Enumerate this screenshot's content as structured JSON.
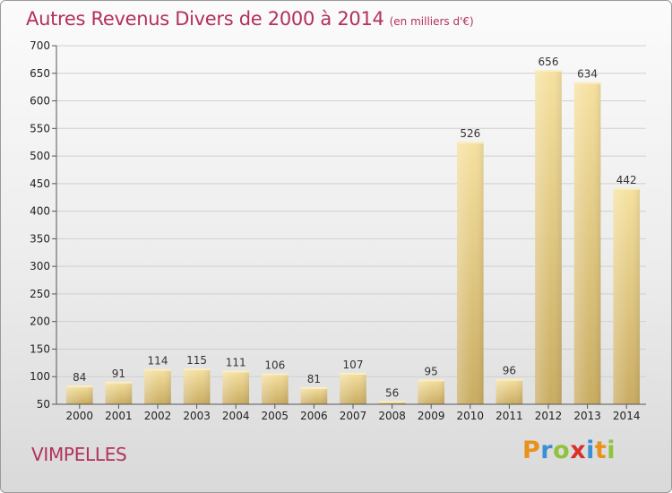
{
  "chart_data": {
    "type": "bar",
    "title": "Autres Revenus Divers de 2000 à 2014",
    "subtitle": "(en milliers d'€)",
    "categories": [
      "2000",
      "2001",
      "2002",
      "2003",
      "2004",
      "2005",
      "2006",
      "2007",
      "2008",
      "2009",
      "2010",
      "2011",
      "2012",
      "2013",
      "2014"
    ],
    "values": [
      84,
      91,
      114,
      115,
      111,
      106,
      81,
      107,
      56,
      95,
      526,
      96,
      656,
      634,
      442
    ],
    "ylim": [
      50,
      700
    ],
    "yticks": [
      50,
      100,
      150,
      200,
      250,
      300,
      350,
      400,
      450,
      500,
      550,
      600,
      650,
      700
    ],
    "grid": true,
    "bar_color": "#e5c877",
    "grid_color": "#cfcfcf"
  },
  "commune": "VIMPELLES",
  "logo": {
    "letters": [
      "P",
      "r",
      "o",
      "x",
      "i",
      "t",
      "i"
    ],
    "colors": [
      "#e8921c",
      "#3d8fd4",
      "#8ec33b",
      "#d8312b",
      "#3d8fd4",
      "#e8921c",
      "#8ec33b"
    ]
  },
  "accent_color": "#b3305d"
}
